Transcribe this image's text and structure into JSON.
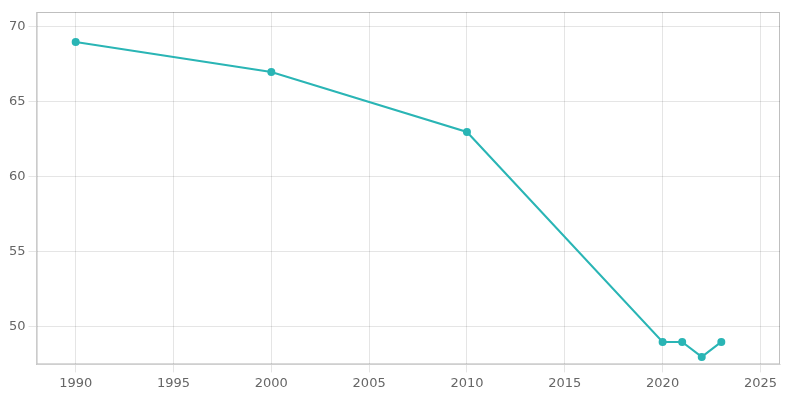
{
  "chart_data": {
    "type": "line",
    "x": [
      1990,
      2000,
      2010,
      2020,
      2021,
      2022,
      2023
    ],
    "values": [
      69,
      67,
      63,
      49,
      49,
      48,
      49
    ],
    "color": "#2ab5b5",
    "marker": "circle",
    "xlim": [
      1988,
      2026
    ],
    "xticks": [
      1990,
      1995,
      2000,
      2005,
      2010,
      2015,
      2020,
      2025
    ],
    "ylim": [
      47.5,
      71
    ],
    "yticks": [
      50,
      55,
      60,
      65,
      70
    ],
    "grid": true
  }
}
